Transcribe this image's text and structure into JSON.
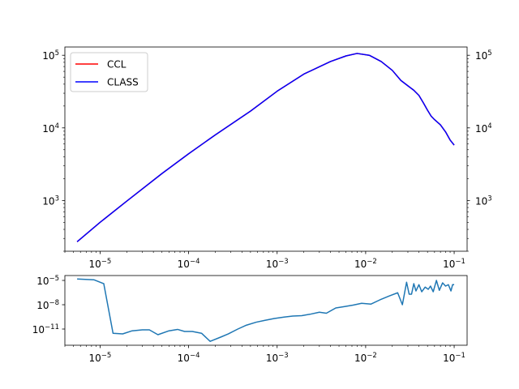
{
  "chart_data": [
    {
      "type": "line",
      "title": "",
      "xlabel": "",
      "ylabel": "",
      "xscale": "log",
      "yscale": "log",
      "xlim": [
        4e-06,
        0.14
      ],
      "ylim": [
        200,
        130000
      ],
      "x_ticks": [
        {
          "value": 1e-05,
          "base": "10",
          "exp": "−5"
        },
        {
          "value": 0.0001,
          "base": "10",
          "exp": "−4"
        },
        {
          "value": 0.001,
          "base": "10",
          "exp": "−3"
        },
        {
          "value": 0.01,
          "base": "10",
          "exp": "−2"
        },
        {
          "value": 0.1,
          "base": "10",
          "exp": "−1"
        }
      ],
      "y_ticks": [
        {
          "value": 1000.0,
          "base": "10",
          "exp": "3"
        },
        {
          "value": 10000.0,
          "base": "10",
          "exp": "4"
        },
        {
          "value": 100000.0,
          "base": "10",
          "exp": "5"
        }
      ],
      "right_y_ticks": true,
      "grid": false,
      "legend": {
        "placement": "top-left"
      },
      "series": [
        {
          "name": "CCL",
          "color": "#ff0000",
          "x": [
            5.5e-06,
            1e-05,
            2e-05,
            5e-05,
            0.0001,
            0.0002,
            0.0005,
            0.001,
            0.002,
            0.004,
            0.006,
            0.008,
            0.011,
            0.015,
            0.02,
            0.025,
            0.03,
            0.035,
            0.04,
            0.045,
            0.05,
            0.055,
            0.06,
            0.07,
            0.08,
            0.09,
            0.1
          ],
          "y": [
            270,
            500,
            980,
            2350,
            4400,
            8000,
            17000,
            32000,
            55000,
            82000,
            98000,
            106000,
            100000,
            82000,
            62000,
            45000,
            38000,
            33000,
            28000,
            22000,
            17500,
            14500,
            13000,
            11000,
            8800,
            6800,
            5800
          ]
        },
        {
          "name": "CLASS",
          "color": "#0000ff",
          "x": [
            5.5e-06,
            1e-05,
            2e-05,
            5e-05,
            0.0001,
            0.0002,
            0.0005,
            0.001,
            0.002,
            0.004,
            0.006,
            0.008,
            0.011,
            0.015,
            0.02,
            0.025,
            0.03,
            0.035,
            0.04,
            0.045,
            0.05,
            0.055,
            0.06,
            0.07,
            0.08,
            0.09,
            0.1
          ],
          "y": [
            270,
            500,
            980,
            2350,
            4400,
            8000,
            17000,
            32000,
            55000,
            82000,
            98000,
            106000,
            100000,
            82000,
            62000,
            45000,
            38000,
            33000,
            28000,
            22000,
            17500,
            14500,
            13000,
            11000,
            8800,
            6800,
            5800
          ]
        }
      ]
    },
    {
      "type": "line",
      "title": "",
      "xlabel": "",
      "ylabel": "",
      "xscale": "log",
      "yscale": "log",
      "xlim": [
        4e-06,
        0.14
      ],
      "ylim": [
        1e-13,
        4e-05
      ],
      "x_ticks": [
        {
          "value": 1e-05,
          "base": "10",
          "exp": "−5"
        },
        {
          "value": 0.0001,
          "base": "10",
          "exp": "−4"
        },
        {
          "value": 0.001,
          "base": "10",
          "exp": "−3"
        },
        {
          "value": 0.01,
          "base": "10",
          "exp": "−2"
        },
        {
          "value": 0.1,
          "base": "10",
          "exp": "−1"
        }
      ],
      "y_ticks": [
        {
          "value": 1e-11,
          "base": "10",
          "exp": "−11"
        },
        {
          "value": 1e-08,
          "base": "10",
          "exp": "−8"
        },
        {
          "value": 1e-05,
          "base": "10",
          "exp": "−5"
        }
      ],
      "grid": false,
      "series": [
        {
          "color": "#1f77b4",
          "x": [
            5.5e-06,
            8.5e-06,
            1.1e-05,
            1.4e-05,
            1.8e-05,
            2.3e-05,
            3e-05,
            3.6e-05,
            4.5e-05,
            6e-05,
            7.5e-05,
            9e-05,
            0.00011,
            0.00014,
            0.000175,
            0.00023,
            0.00028,
            0.00036,
            0.00045,
            0.00058,
            0.00073,
            0.00093,
            0.0012,
            0.0015,
            0.0019,
            0.0024,
            0.003,
            0.0036,
            0.0046,
            0.0058,
            0.0072,
            0.009,
            0.0115,
            0.0145,
            0.0185,
            0.023,
            0.026,
            0.029,
            0.031,
            0.033,
            0.035,
            0.037,
            0.04,
            0.043,
            0.047,
            0.051,
            0.054,
            0.058,
            0.063,
            0.068,
            0.074,
            0.08,
            0.086,
            0.092,
            0.096,
            0.1
          ],
          "y": [
            1.5e-05,
            1.2e-05,
            4e-06,
            3e-12,
            2.5e-12,
            6e-12,
            8e-12,
            8e-12,
            2e-12,
            6e-12,
            9e-12,
            5e-12,
            5e-12,
            3e-12,
            3e-13,
            1e-12,
            2.5e-12,
            1e-11,
            3e-11,
            7e-11,
            1.2e-10,
            2e-10,
            3e-10,
            4e-10,
            4.5e-10,
            7e-10,
            1.2e-09,
            9e-10,
            4e-09,
            6e-09,
            9e-09,
            1.5e-08,
            1.2e-08,
            4e-08,
            1.2e-07,
            3e-07,
            1e-08,
            6e-06,
            2e-07,
            2e-07,
            4e-06,
            5e-07,
            3e-06,
            4e-07,
            1.5e-06,
            8e-07,
            2e-06,
            4e-07,
            1e-05,
            6e-07,
            5e-06,
            2e-06,
            3e-06,
            5e-07,
            3e-06,
            3e-06
          ]
        }
      ]
    }
  ]
}
